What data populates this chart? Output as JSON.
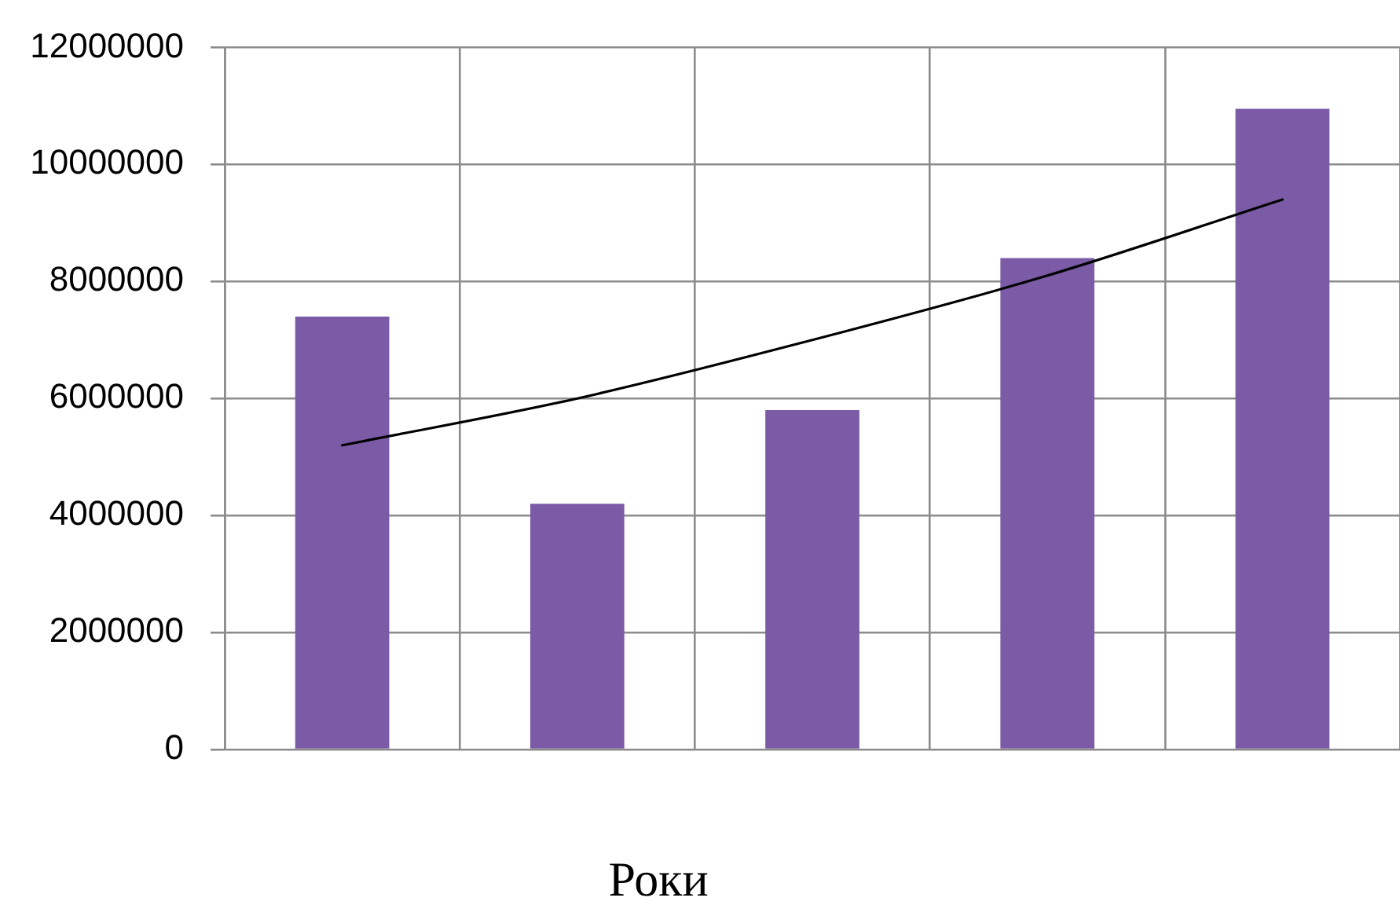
{
  "chart_data": {
    "type": "bar",
    "xlabel": "Роки",
    "categories": [
      null,
      null,
      null,
      null,
      null
    ],
    "series": [
      {
        "color": "#7b5aa6",
        "values": [
          7400000,
          4200000,
          5800000,
          8400000,
          10950000
        ]
      },
      {
        "type": "line",
        "color": "#000000",
        "marker": "none",
        "line_style": "solid",
        "values": [
          5200000,
          6000000,
          7000000,
          8100000,
          9400000
        ]
      }
    ],
    "ylim": [
      0,
      12000000
    ],
    "yticks": [
      0,
      2000000,
      4000000,
      6000000,
      8000000,
      10000000,
      12000000
    ],
    "grid": true
  }
}
